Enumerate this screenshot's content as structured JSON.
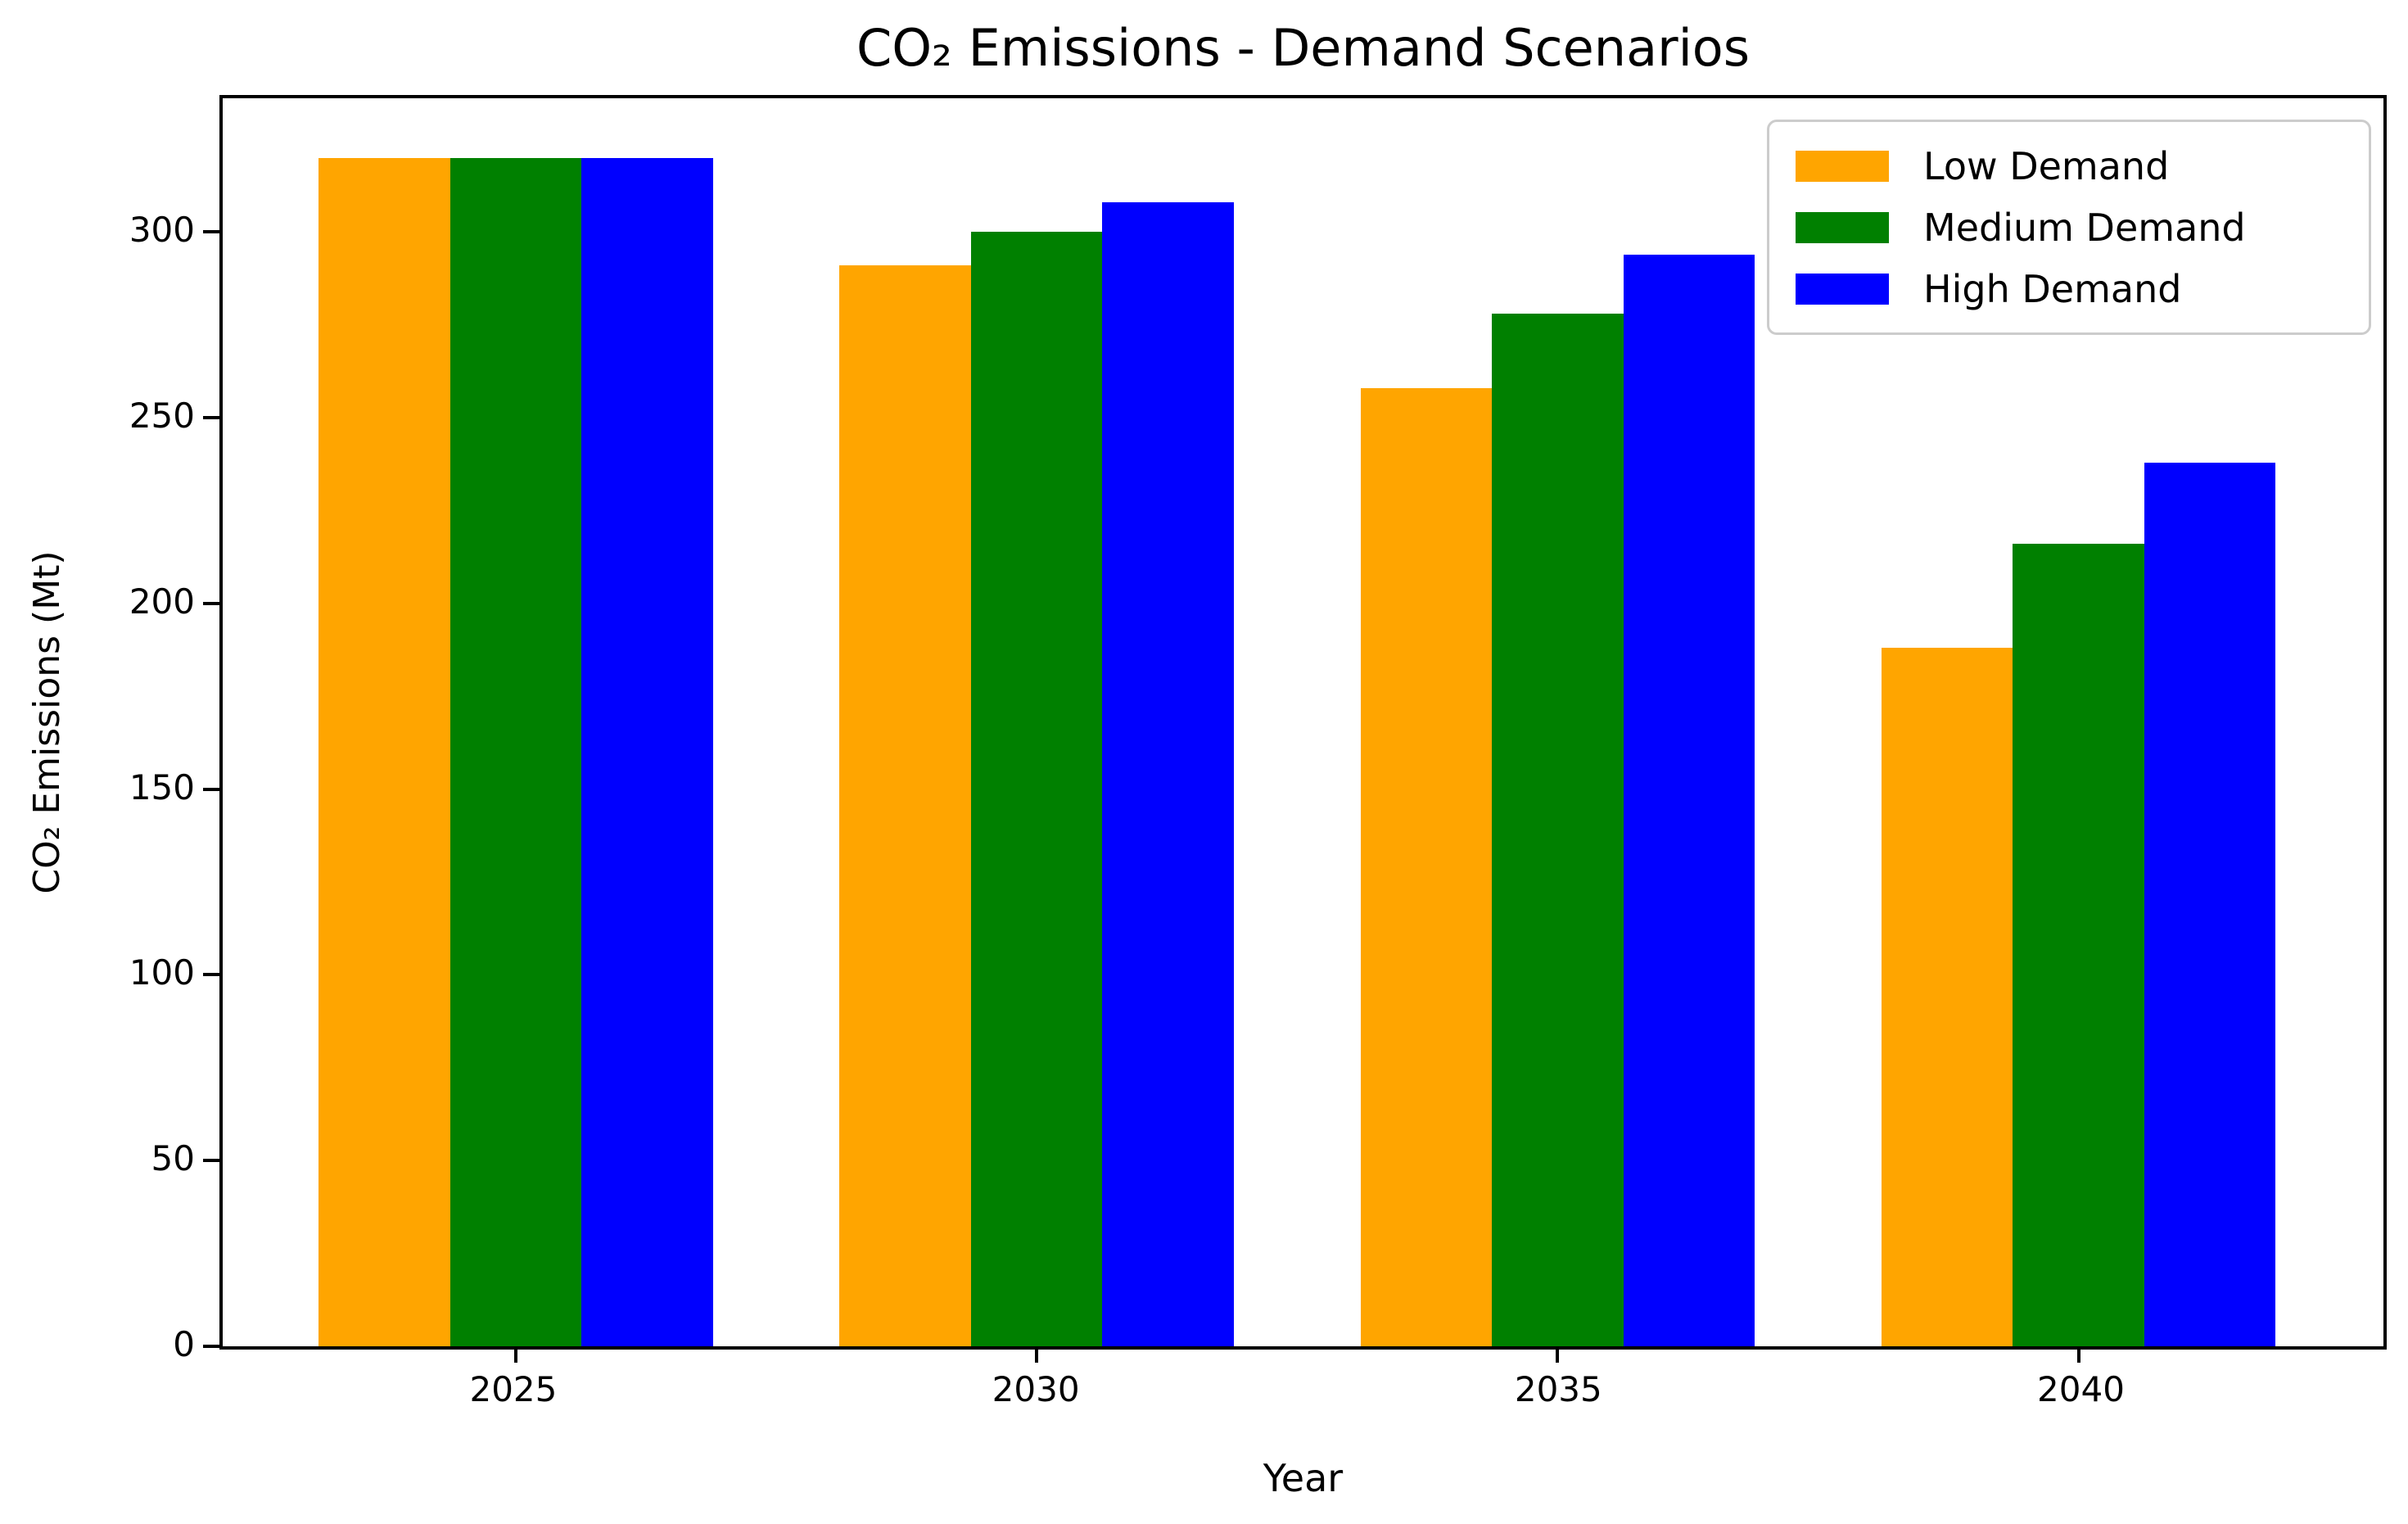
{
  "chart_data": {
    "type": "bar",
    "title": "CO₂ Emissions - Demand Scenarios",
    "xlabel": "Year",
    "ylabel": "CO₂ Emissions (Mt)",
    "categories": [
      "2025",
      "2030",
      "2035",
      "2040"
    ],
    "series": [
      {
        "name": "Low Demand",
        "color": "#FFA500",
        "values": [
          320,
          291,
          258,
          188
        ]
      },
      {
        "name": "Medium Demand",
        "color": "#008000",
        "values": [
          320,
          300,
          278,
          216
        ]
      },
      {
        "name": "High Demand",
        "color": "#0000FF",
        "values": [
          320,
          308,
          294,
          238
        ]
      }
    ],
    "yticks": [
      0,
      50,
      100,
      150,
      200,
      250,
      300
    ],
    "ylim": [
      0,
      336
    ],
    "grid": false,
    "legend_position": "upper right",
    "background_color": "#ffffff",
    "axis_color": "#000000",
    "text_color": "#000000",
    "legend_border_color": "#cccccc"
  }
}
